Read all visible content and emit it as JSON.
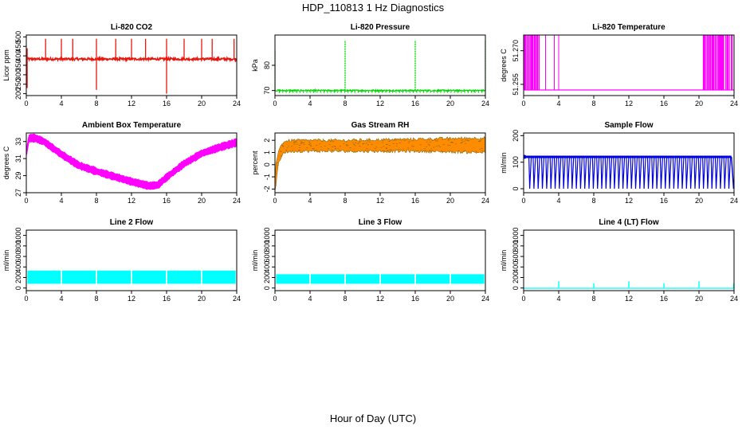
{
  "page": {
    "title": "HDP_110813  1 Hz Diagnostics",
    "xlabel": "Hour of Day (UTC)"
  },
  "chart_data": [
    {
      "type": "line",
      "title": "Li-820 CO2",
      "ylabel": "Licor ppm",
      "color": "#e8160c",
      "xlim": [
        0,
        24
      ],
      "xticks": [
        0,
        4,
        8,
        12,
        16,
        20,
        24
      ],
      "ylim": [
        190,
        510
      ],
      "yticks": [
        200,
        250,
        300,
        350,
        400,
        450,
        500
      ],
      "baseline": 383,
      "noise": 6,
      "spikes": [
        [
          0.1,
          230
        ],
        [
          0.1,
          440
        ],
        [
          2.2,
          490
        ],
        [
          4,
          490
        ],
        [
          5.3,
          490
        ],
        [
          8,
          490
        ],
        [
          8,
          220
        ],
        [
          10.2,
          490
        ],
        [
          12,
          490
        ],
        [
          13.6,
          490
        ],
        [
          16,
          490
        ],
        [
          16,
          200
        ],
        [
          18,
          490
        ],
        [
          20,
          490
        ],
        [
          21.2,
          490
        ],
        [
          23.7,
          490
        ]
      ]
    },
    {
      "type": "line",
      "title": "Li-820 Pressure",
      "ylabel": "kPa",
      "color": "#00d800",
      "xlim": [
        0,
        24
      ],
      "xticks": [
        0,
        4,
        8,
        12,
        16,
        20,
        24
      ],
      "ylim": [
        68,
        92
      ],
      "yticks": [
        70,
        80
      ],
      "baseline": 70,
      "noise": 0.3,
      "spikes": [
        [
          0,
          86
        ],
        [
          8,
          90
        ],
        [
          16,
          90
        ],
        [
          24,
          90
        ]
      ]
    },
    {
      "type": "line",
      "title": "Li-820 Temperature",
      "ylabel": "degrees C",
      "color": "#ff00ff",
      "xlim": [
        0,
        24
      ],
      "xticks": [
        0,
        4,
        8,
        12,
        16,
        20,
        24
      ],
      "ylim": [
        51.25,
        51.277
      ],
      "yticks": [
        51.255,
        51.27
      ],
      "ytick_labels": [
        "51.255",
        "51.270"
      ],
      "baseline": 51.2525,
      "high_value": 51.277,
      "dense_ranges": [
        [
          0,
          2.0
        ],
        [
          20.5,
          23.8
        ]
      ],
      "isolated_lines": [
        2.5,
        3.5,
        4.0
      ]
    },
    {
      "type": "area",
      "title": "Ambient Box Temperature",
      "ylabel": "degrees C",
      "color": "#ff00ff",
      "xlim": [
        0,
        24
      ],
      "xticks": [
        0,
        4,
        8,
        12,
        16,
        20,
        24
      ],
      "ylim": [
        27,
        34
      ],
      "yticks": [
        27,
        29,
        31,
        33
      ],
      "band_center": [
        [
          0,
          31.5
        ],
        [
          0.3,
          33.4
        ],
        [
          1,
          33.4
        ],
        [
          2,
          33
        ],
        [
          4,
          31.5
        ],
        [
          6,
          30.2
        ],
        [
          8,
          29.5
        ],
        [
          10,
          28.9
        ],
        [
          12,
          28.3
        ],
        [
          14,
          27.8
        ],
        [
          15,
          27.9
        ],
        [
          16,
          28.8
        ],
        [
          18,
          30.4
        ],
        [
          20,
          31.6
        ],
        [
          22,
          32.3
        ],
        [
          24,
          32.9
        ]
      ],
      "band_half_width": 0.4
    },
    {
      "type": "area",
      "title": "Gas Stream RH",
      "ylabel": "percent",
      "color": "#ff8c00",
      "secondary_color": "#8b6914",
      "xlim": [
        0,
        24
      ],
      "xticks": [
        0,
        4,
        8,
        12,
        16,
        20,
        24
      ],
      "ylim": [
        -2.3,
        2.6
      ],
      "yticks": [
        -2,
        -1,
        0,
        1,
        2
      ],
      "band": [
        [
          0,
          -2.2,
          -1.5
        ],
        [
          0.1,
          -1.8,
          0
        ],
        [
          0.4,
          0.2,
          1.2
        ],
        [
          1,
          1.0,
          1.9
        ],
        [
          2,
          1.1,
          2.0
        ],
        [
          8,
          1.1,
          2.0
        ],
        [
          16,
          1.1,
          2.1
        ],
        [
          24,
          1.0,
          2.2
        ]
      ]
    },
    {
      "type": "line",
      "title": "Sample Flow",
      "ylabel": "ml/min",
      "color": "#0000e0",
      "xlim": [
        0,
        24
      ],
      "xticks": [
        0,
        4,
        8,
        12,
        16,
        20,
        24
      ],
      "ylim": [
        -15,
        210
      ],
      "yticks": [
        0,
        100,
        200
      ],
      "baseline": 120,
      "dip_value": 0,
      "dip_count": 48
    },
    {
      "type": "area",
      "title": "Line 2 Flow",
      "ylabel": "ml/min",
      "color": "#00ffff",
      "xlim": [
        0,
        24
      ],
      "xticks": [
        0,
        4,
        8,
        12,
        16,
        20,
        24
      ],
      "ylim": [
        -50,
        1100
      ],
      "yticks": [
        0,
        200,
        400,
        600,
        800,
        1000
      ],
      "band_low": 80,
      "band_high": 320,
      "gaps": [
        4,
        8,
        12,
        16,
        20
      ]
    },
    {
      "type": "area",
      "title": "Line 3 Flow",
      "ylabel": "ml/min",
      "color": "#00ffff",
      "xlim": [
        0,
        24
      ],
      "xticks": [
        0,
        4,
        8,
        12,
        16,
        20,
        24
      ],
      "ylim": [
        -50,
        1100
      ],
      "yticks": [
        0,
        200,
        400,
        600,
        800,
        1000
      ],
      "band_low": 80,
      "band_high": 250,
      "gaps": [
        4,
        8,
        12,
        16,
        20
      ]
    },
    {
      "type": "line",
      "title": "Line 4 (LT) Flow",
      "ylabel": "ml/min",
      "color": "#00ffff",
      "xlim": [
        0,
        24
      ],
      "xticks": [
        0,
        4,
        8,
        12,
        16,
        20,
        24
      ],
      "ylim": [
        -50,
        1100
      ],
      "yticks": [
        0,
        200,
        400,
        600,
        800,
        1000
      ],
      "baseline": -5,
      "spikes": [
        [
          4,
          130
        ],
        [
          8,
          90
        ],
        [
          12,
          130
        ],
        [
          16,
          90
        ],
        [
          20,
          130
        ],
        [
          24,
          90
        ]
      ]
    }
  ]
}
